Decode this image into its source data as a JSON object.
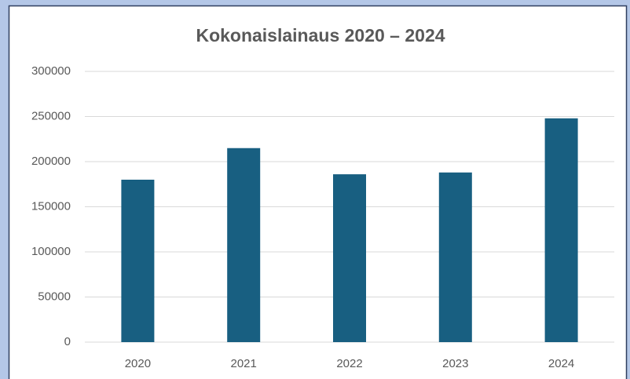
{
  "chart_data": {
    "type": "bar",
    "title": "Kokonaislainaus 2020 – 2024",
    "categories": [
      "2020",
      "2021",
      "2022",
      "2023",
      "2024"
    ],
    "values": [
      180000,
      215000,
      186000,
      188000,
      248000
    ],
    "color": "#185f81",
    "ylim": [
      0,
      300000
    ],
    "yticks": [
      0,
      50000,
      100000,
      150000,
      200000,
      250000,
      300000
    ],
    "grid": true
  }
}
